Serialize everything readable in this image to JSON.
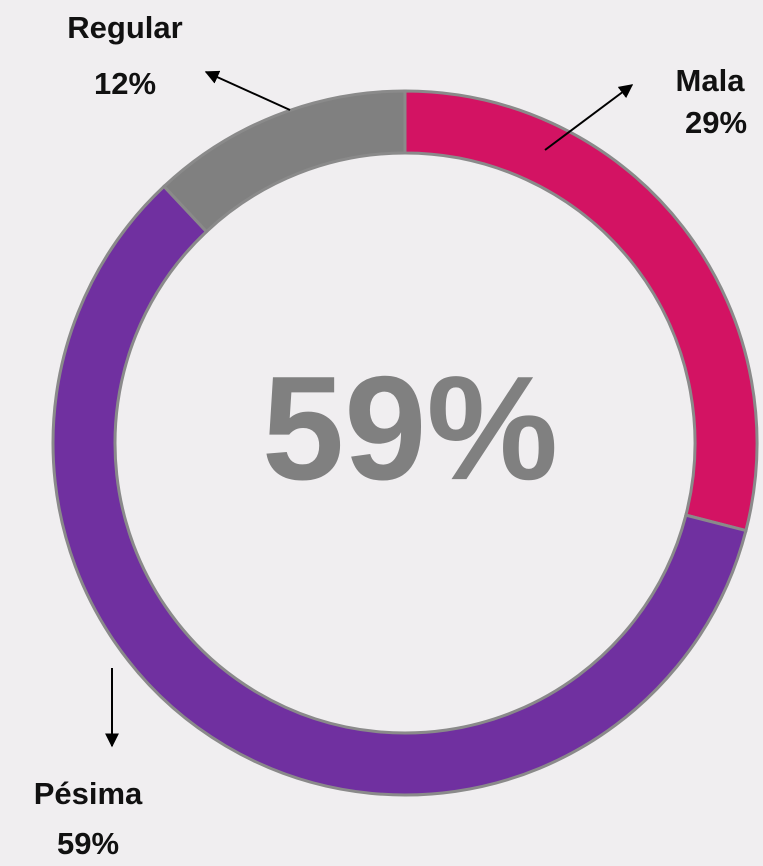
{
  "chart_data": {
    "type": "donut",
    "categories": [
      "Mala",
      "Pésima",
      "Regular"
    ],
    "values": [
      29,
      59,
      12
    ],
    "value_labels": [
      "29%",
      "59%",
      "12%"
    ],
    "colors": [
      "#d31363",
      "#7030a0",
      "#808080"
    ],
    "center_label": "59%"
  }
}
